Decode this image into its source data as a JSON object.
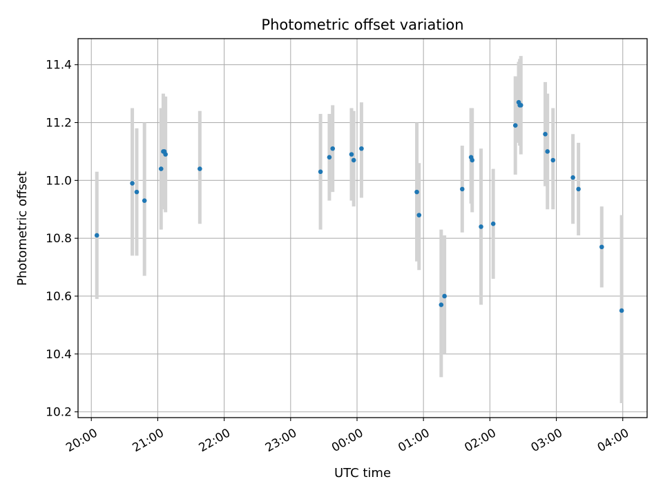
{
  "chart_data": {
    "type": "scatter",
    "title": "Photometric offset variation",
    "xlabel": "UTC time",
    "ylabel": "Photometric offset",
    "x_ticks": [
      "20:00",
      "21:00",
      "22:00",
      "23:00",
      "00:00",
      "01:00",
      "02:00",
      "03:00",
      "04:00"
    ],
    "y_ticks": [
      "10.2",
      "10.4",
      "10.6",
      "10.8",
      "11.0",
      "11.2",
      "11.4"
    ],
    "xlim": [
      "19:48",
      "04:22"
    ],
    "ylim": [
      10.18,
      11.49
    ],
    "grid": true,
    "colors": {
      "marker": "#1f77b4",
      "errorbar": "#d3d3d3",
      "grid": "#b0b0b0"
    },
    "series": [
      {
        "points": [
          {
            "x": "20:05",
            "y": 10.81,
            "ylow": 10.59,
            "yhigh": 11.03
          },
          {
            "x": "20:37",
            "y": 10.99,
            "ylow": 10.74,
            "yhigh": 11.25
          },
          {
            "x": "20:41",
            "y": 10.96,
            "ylow": 10.74,
            "yhigh": 11.18
          },
          {
            "x": "20:48",
            "y": 10.93,
            "ylow": 10.67,
            "yhigh": 11.2
          },
          {
            "x": "21:03",
            "y": 11.04,
            "ylow": 10.83,
            "yhigh": 11.25
          },
          {
            "x": "21:05",
            "y": 11.1,
            "ylow": 10.91,
            "yhigh": 11.3
          },
          {
            "x": "21:06",
            "y": 11.1,
            "ylow": 10.9,
            "yhigh": 11.29
          },
          {
            "x": "21:07",
            "y": 11.09,
            "ylow": 10.89,
            "yhigh": 11.29
          },
          {
            "x": "21:38",
            "y": 11.04,
            "ylow": 10.85,
            "yhigh": 11.24
          },
          {
            "x": "23:27",
            "y": 11.03,
            "ylow": 10.83,
            "yhigh": 11.23
          },
          {
            "x": "23:35",
            "y": 11.08,
            "ylow": 10.93,
            "yhigh": 11.23
          },
          {
            "x": "23:38",
            "y": 11.11,
            "ylow": 10.96,
            "yhigh": 11.26
          },
          {
            "x": "23:55",
            "y": 11.09,
            "ylow": 10.93,
            "yhigh": 11.25
          },
          {
            "x": "23:57",
            "y": 11.07,
            "ylow": 10.91,
            "yhigh": 11.24
          },
          {
            "x": "00:04",
            "y": 11.11,
            "ylow": 10.94,
            "yhigh": 11.27
          },
          {
            "x": "00:54",
            "y": 10.96,
            "ylow": 10.72,
            "yhigh": 11.2
          },
          {
            "x": "00:56",
            "y": 10.88,
            "ylow": 10.69,
            "yhigh": 11.06
          },
          {
            "x": "01:16",
            "y": 10.57,
            "ylow": 10.32,
            "yhigh": 10.83
          },
          {
            "x": "01:19",
            "y": 10.6,
            "ylow": 10.4,
            "yhigh": 10.81
          },
          {
            "x": "01:35",
            "y": 10.97,
            "ylow": 10.82,
            "yhigh": 11.12
          },
          {
            "x": "01:43",
            "y": 11.08,
            "ylow": 10.92,
            "yhigh": 11.25
          },
          {
            "x": "01:44",
            "y": 11.07,
            "ylow": 10.89,
            "yhigh": 11.25
          },
          {
            "x": "01:52",
            "y": 10.84,
            "ylow": 10.57,
            "yhigh": 11.11
          },
          {
            "x": "02:03",
            "y": 10.85,
            "ylow": 10.66,
            "yhigh": 11.04
          },
          {
            "x": "02:23",
            "y": 11.19,
            "ylow": 11.02,
            "yhigh": 11.36
          },
          {
            "x": "02:26",
            "y": 11.27,
            "ylow": 11.13,
            "yhigh": 11.41
          },
          {
            "x": "02:27",
            "y": 11.26,
            "ylow": 11.12,
            "yhigh": 11.42
          },
          {
            "x": "02:28",
            "y": 11.26,
            "ylow": 11.09,
            "yhigh": 11.43
          },
          {
            "x": "02:50",
            "y": 11.16,
            "ylow": 10.98,
            "yhigh": 11.34
          },
          {
            "x": "02:52",
            "y": 11.1,
            "ylow": 10.9,
            "yhigh": 11.3
          },
          {
            "x": "02:57",
            "y": 11.07,
            "ylow": 10.9,
            "yhigh": 11.25
          },
          {
            "x": "03:15",
            "y": 11.01,
            "ylow": 10.85,
            "yhigh": 11.16
          },
          {
            "x": "03:20",
            "y": 10.97,
            "ylow": 10.81,
            "yhigh": 11.13
          },
          {
            "x": "03:41",
            "y": 10.77,
            "ylow": 10.63,
            "yhigh": 10.91
          },
          {
            "x": "03:59",
            "y": 10.55,
            "ylow": 10.23,
            "yhigh": 10.88
          }
        ]
      }
    ]
  }
}
